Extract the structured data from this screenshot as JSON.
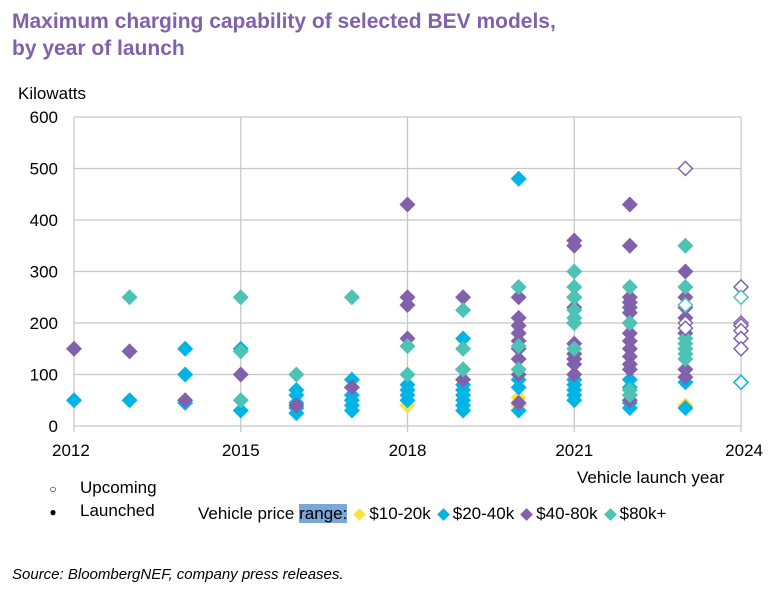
{
  "chart_data": {
    "type": "scatter",
    "title": "Maximum charging capability of selected BEV models, by year of launch",
    "title_lines": [
      "Maximum charging capability of selected BEV models,",
      "by year of launch"
    ],
    "ylabel": "Kilowatts",
    "xlabel": "Vehicle launch year",
    "xlim": [
      2012,
      2024
    ],
    "ylim": [
      0,
      600
    ],
    "xticks": [
      2012,
      2015,
      2018,
      2021,
      2024
    ],
    "yticks": [
      0,
      100,
      200,
      300,
      400,
      500,
      600
    ],
    "grid": true,
    "marker": "diamond",
    "status_legend": [
      {
        "label": "Upcoming",
        "symbol": "○",
        "filled": false
      },
      {
        "label": "Launched",
        "symbol": "●",
        "filled": true
      }
    ],
    "price_legend_title_prefix": "Vehicle price ",
    "price_legend_title_highlight": "range:",
    "series": [
      {
        "name": "$10-20k",
        "color": "#ffe13d",
        "launched": [
          [
            2018,
            40
          ],
          [
            2020,
            40
          ],
          [
            2020,
            55
          ],
          [
            2023,
            40
          ]
        ],
        "upcoming": []
      },
      {
        "name": "$20-40k",
        "color": "#00b4e6",
        "launched": [
          [
            2012,
            50
          ],
          [
            2013,
            50
          ],
          [
            2014,
            150
          ],
          [
            2014,
            100
          ],
          [
            2014,
            45
          ],
          [
            2015,
            150
          ],
          [
            2015,
            30
          ],
          [
            2016,
            70
          ],
          [
            2016,
            60
          ],
          [
            2016,
            45
          ],
          [
            2016,
            35
          ],
          [
            2016,
            25
          ],
          [
            2017,
            90
          ],
          [
            2017,
            75
          ],
          [
            2017,
            60
          ],
          [
            2017,
            50
          ],
          [
            2017,
            40
          ],
          [
            2017,
            30
          ],
          [
            2018,
            80
          ],
          [
            2018,
            70
          ],
          [
            2018,
            60
          ],
          [
            2018,
            50
          ],
          [
            2019,
            170
          ],
          [
            2019,
            80
          ],
          [
            2019,
            70
          ],
          [
            2019,
            60
          ],
          [
            2019,
            50
          ],
          [
            2019,
            40
          ],
          [
            2019,
            30
          ],
          [
            2020,
            480
          ],
          [
            2020,
            90
          ],
          [
            2020,
            75
          ],
          [
            2020,
            30
          ],
          [
            2021,
            90
          ],
          [
            2021,
            80
          ],
          [
            2021,
            70
          ],
          [
            2021,
            60
          ],
          [
            2021,
            50
          ],
          [
            2022,
            90
          ],
          [
            2022,
            75
          ],
          [
            2022,
            60
          ],
          [
            2022,
            45
          ],
          [
            2022,
            35
          ],
          [
            2023,
            85
          ],
          [
            2023,
            35
          ]
        ],
        "upcoming": [
          [
            2024,
            85
          ]
        ]
      },
      {
        "name": "$40-80k",
        "color": "#8161ac",
        "launched": [
          [
            2012,
            150
          ],
          [
            2013,
            145
          ],
          [
            2014,
            50
          ],
          [
            2015,
            100
          ],
          [
            2016,
            40
          ],
          [
            2017,
            75
          ],
          [
            2018,
            430
          ],
          [
            2018,
            250
          ],
          [
            2018,
            235
          ],
          [
            2018,
            170
          ],
          [
            2019,
            250
          ],
          [
            2019,
            110
          ],
          [
            2019,
            90
          ],
          [
            2020,
            250
          ],
          [
            2020,
            210
          ],
          [
            2020,
            195
          ],
          [
            2020,
            180
          ],
          [
            2020,
            165
          ],
          [
            2020,
            150
          ],
          [
            2020,
            130
          ],
          [
            2020,
            100
          ],
          [
            2020,
            45
          ],
          [
            2021,
            360
          ],
          [
            2021,
            350
          ],
          [
            2021,
            250
          ],
          [
            2021,
            230
          ],
          [
            2021,
            200
          ],
          [
            2021,
            160
          ],
          [
            2021,
            140
          ],
          [
            2021,
            130
          ],
          [
            2021,
            120
          ],
          [
            2021,
            100
          ],
          [
            2022,
            430
          ],
          [
            2022,
            350
          ],
          [
            2022,
            250
          ],
          [
            2022,
            240
          ],
          [
            2022,
            230
          ],
          [
            2022,
            220
          ],
          [
            2022,
            200
          ],
          [
            2022,
            180
          ],
          [
            2022,
            165
          ],
          [
            2022,
            150
          ],
          [
            2022,
            135
          ],
          [
            2022,
            120
          ],
          [
            2022,
            110
          ],
          [
            2022,
            50
          ],
          [
            2023,
            300
          ],
          [
            2023,
            250
          ],
          [
            2023,
            230
          ],
          [
            2023,
            210
          ],
          [
            2023,
            180
          ],
          [
            2023,
            110
          ],
          [
            2023,
            95
          ]
        ],
        "upcoming": [
          [
            2023,
            500
          ],
          [
            2023,
            200
          ],
          [
            2023,
            190
          ],
          [
            2024,
            270
          ],
          [
            2024,
            200
          ],
          [
            2024,
            195
          ],
          [
            2024,
            185
          ],
          [
            2024,
            170
          ],
          [
            2024,
            150
          ]
        ]
      },
      {
        "name": "$80k+",
        "color": "#4dc3b3",
        "launched": [
          [
            2013,
            250
          ],
          [
            2015,
            250
          ],
          [
            2015,
            145
          ],
          [
            2015,
            50
          ],
          [
            2016,
            100
          ],
          [
            2017,
            250
          ],
          [
            2018,
            155
          ],
          [
            2018,
            100
          ],
          [
            2019,
            225
          ],
          [
            2019,
            150
          ],
          [
            2019,
            110
          ],
          [
            2020,
            270
          ],
          [
            2020,
            155
          ],
          [
            2020,
            110
          ],
          [
            2021,
            300
          ],
          [
            2021,
            270
          ],
          [
            2021,
            250
          ],
          [
            2021,
            225
          ],
          [
            2021,
            210
          ],
          [
            2021,
            200
          ],
          [
            2021,
            150
          ],
          [
            2022,
            270
          ],
          [
            2022,
            200
          ],
          [
            2022,
            70
          ],
          [
            2022,
            60
          ],
          [
            2023,
            350
          ],
          [
            2023,
            270
          ],
          [
            2023,
            170
          ],
          [
            2023,
            160
          ],
          [
            2023,
            150
          ],
          [
            2023,
            140
          ],
          [
            2023,
            130
          ]
        ],
        "upcoming": [
          [
            2023,
            235
          ],
          [
            2024,
            250
          ]
        ]
      }
    ]
  },
  "source": "Source: BloombergNEF, company press releases."
}
